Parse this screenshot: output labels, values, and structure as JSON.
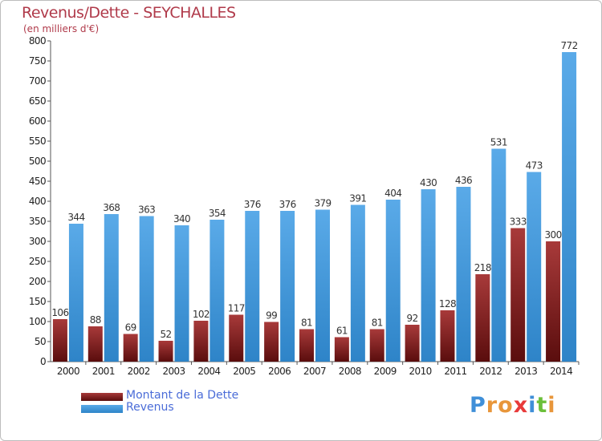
{
  "chart_data": {
    "type": "bar",
    "title": "Revenus/Dette - SEYCHALLES",
    "subtitle": "(en milliers d'€)",
    "categories": [
      "2000",
      "2001",
      "2002",
      "2003",
      "2004",
      "2005",
      "2006",
      "2007",
      "2008",
      "2009",
      "2010",
      "2011",
      "2012",
      "2013",
      "2014"
    ],
    "series": [
      {
        "name": "Montant de la Dette",
        "color": "#7a1c1c",
        "values": [
          106,
          88,
          69,
          52,
          102,
          117,
          99,
          81,
          61,
          81,
          92,
          128,
          218,
          333,
          300
        ]
      },
      {
        "name": "Revenus",
        "color": "#4a9fe0",
        "values": [
          344,
          368,
          363,
          340,
          354,
          376,
          376,
          379,
          391,
          404,
          430,
          436,
          531,
          473,
          772
        ]
      }
    ],
    "ylim": [
      0,
      800
    ],
    "yticks": [
      0,
      50,
      100,
      150,
      200,
      250,
      300,
      350,
      400,
      450,
      500,
      550,
      600,
      650,
      700,
      750,
      800
    ],
    "grid": false,
    "legend_position": "bottom-left"
  },
  "logo": {
    "text": "Proxiti",
    "letters": [
      {
        "ch": "P",
        "color": "#3f8fd8"
      },
      {
        "ch": "r",
        "color": "#e8963a"
      },
      {
        "ch": "o",
        "color": "#e8963a"
      },
      {
        "ch": "x",
        "color": "#e83a3a"
      },
      {
        "ch": "i",
        "color": "#3f8fd8"
      },
      {
        "ch": "t",
        "color": "#6bbf3a"
      },
      {
        "ch": "i",
        "color": "#e8963a"
      }
    ]
  }
}
